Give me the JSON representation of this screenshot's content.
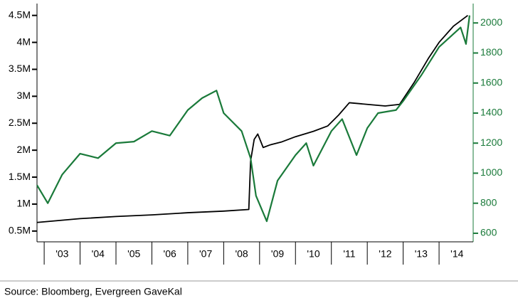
{
  "chart_data": {
    "type": "line",
    "source": "Source: Bloomberg, Evergreen GaveKal",
    "xlim": [
      2002.8,
      2014.95
    ],
    "xticks": [
      {
        "value": 2003,
        "label": "'03"
      },
      {
        "value": 2004,
        "label": "'04"
      },
      {
        "value": 2005,
        "label": "'05"
      },
      {
        "value": 2006,
        "label": "'06"
      },
      {
        "value": 2007,
        "label": "'07"
      },
      {
        "value": 2008,
        "label": "'08"
      },
      {
        "value": 2009,
        "label": "'09"
      },
      {
        "value": 2010,
        "label": "'10"
      },
      {
        "value": 2011,
        "label": "'11"
      },
      {
        "value": 2012,
        "label": "'12"
      },
      {
        "value": 2013,
        "label": "'13"
      },
      {
        "value": 2014,
        "label": "'14"
      }
    ],
    "ylim": [
      300000,
      4720000
    ],
    "yticks": [
      {
        "value": 500000,
        "label": "0.5M"
      },
      {
        "value": 1000000,
        "label": "1M"
      },
      {
        "value": 1500000,
        "label": "1.5M"
      },
      {
        "value": 2000000,
        "label": "2M"
      },
      {
        "value": 2500000,
        "label": "2.5M"
      },
      {
        "value": 3000000,
        "label": "3M"
      },
      {
        "value": 3500000,
        "label": "3.5M"
      },
      {
        "value": 4000000,
        "label": "4M"
      },
      {
        "value": 4500000,
        "label": "4.5M"
      }
    ],
    "y2lim": [
      543,
      2129
    ],
    "y2ticks": [
      600,
      800,
      1000,
      1200,
      1400,
      1600,
      1800,
      2000
    ],
    "y2color": "#1a7a3a",
    "series": [
      {
        "color": "#000000",
        "x": [
          2002.8,
          2004,
          2005,
          2006,
          2007,
          2008,
          2008.7,
          2008.75,
          2008.85,
          2008.95,
          2009.1,
          2009.3,
          2009.6,
          2010,
          2010.5,
          2010.9,
          2011.2,
          2011.5,
          2012,
          2012.5,
          2012.9,
          2013.3,
          2013.7,
          2014,
          2014.4,
          2014.8
        ],
        "values": [
          660000,
          730000,
          770000,
          800000,
          840000,
          870000,
          900000,
          1800000,
          2200000,
          2300000,
          2050000,
          2100000,
          2150000,
          2250000,
          2350000,
          2450000,
          2650000,
          2880000,
          2850000,
          2820000,
          2850000,
          3250000,
          3700000,
          4000000,
          4300000,
          4500000
        ]
      },
      {
        "color": "#1a7a3a",
        "axis": "y2",
        "x": [
          2002.8,
          2003.1,
          2003.5,
          2004,
          2004.5,
          2005,
          2005.5,
          2006,
          2006.5,
          2007,
          2007.4,
          2007.8,
          2008,
          2008.5,
          2008.75,
          2008.9,
          2009.2,
          2009.5,
          2010,
          2010.3,
          2010.5,
          2011,
          2011.3,
          2011.7,
          2012,
          2012.3,
          2012.8,
          2013,
          2013.5,
          2014,
          2014.6,
          2014.75,
          2014.85
        ],
        "values": [
          920,
          800,
          990,
          1130,
          1100,
          1200,
          1210,
          1280,
          1250,
          1420,
          1500,
          1550,
          1400,
          1280,
          1100,
          850,
          680,
          950,
          1120,
          1200,
          1050,
          1280,
          1360,
          1120,
          1300,
          1400,
          1420,
          1480,
          1650,
          1840,
          1970,
          1860,
          2050
        ]
      }
    ]
  }
}
